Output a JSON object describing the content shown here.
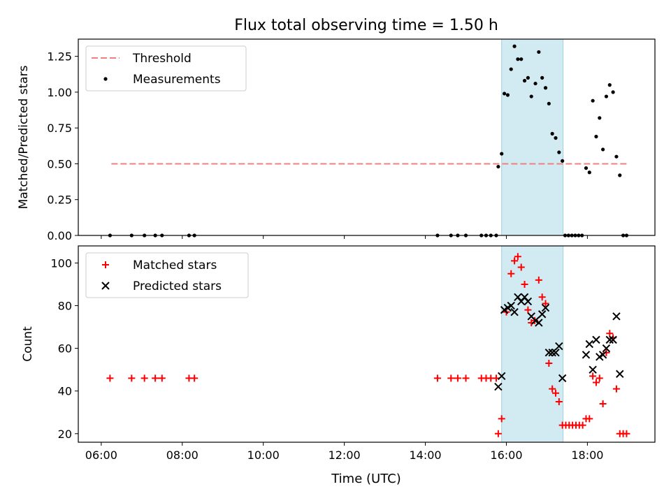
{
  "figure": {
    "title": "Flux total observing time = 1.50 h",
    "xlabel": "Time (UTC)",
    "x_ticks": [
      "06:00",
      "08:00",
      "10:00",
      "12:00",
      "14:00",
      "16:00",
      "18:00"
    ],
    "shaded_interval": {
      "start": "15:53",
      "end": "17:24",
      "color": "#add8e6"
    }
  },
  "chart_data": [
    {
      "type": "scatter",
      "panel": "top",
      "ylabel": "Matched/Predicted stars",
      "ylim": [
        0,
        1.37
      ],
      "y_ticks": [
        "0.00",
        "0.25",
        "0.50",
        "0.75",
        "1.00",
        "1.25"
      ],
      "legend": {
        "placement": "upper-left",
        "entries": [
          "Threshold",
          "Measurements"
        ]
      },
      "series": [
        {
          "name": "Threshold",
          "style": "dashed-line",
          "color": "#f08080",
          "points": [
            [
              "06:15",
              0.5
            ],
            [
              "19:00",
              0.5
            ]
          ]
        },
        {
          "name": "Measurements",
          "style": "dot",
          "color": "#000000",
          "points": [
            [
              "06:13",
              0
            ],
            [
              "06:45",
              0
            ],
            [
              "07:04",
              0
            ],
            [
              "07:20",
              0
            ],
            [
              "07:30",
              0
            ],
            [
              "08:10",
              0
            ],
            [
              "08:18",
              0
            ],
            [
              "14:18",
              0
            ],
            [
              "14:38",
              0
            ],
            [
              "14:48",
              0
            ],
            [
              "15:00",
              0
            ],
            [
              "15:23",
              0
            ],
            [
              "15:30",
              0
            ],
            [
              "15:37",
              0
            ],
            [
              "15:45",
              0
            ],
            [
              "15:48",
              0.48
            ],
            [
              "15:53",
              0.57
            ],
            [
              "15:57",
              0.99
            ],
            [
              "16:02",
              0.98
            ],
            [
              "16:07",
              1.16
            ],
            [
              "16:12",
              1.32
            ],
            [
              "16:17",
              1.23
            ],
            [
              "16:22",
              1.23
            ],
            [
              "16:27",
              1.08
            ],
            [
              "16:32",
              1.1
            ],
            [
              "16:37",
              0.97
            ],
            [
              "16:43",
              1.06
            ],
            [
              "16:48",
              1.28
            ],
            [
              "16:53",
              1.1
            ],
            [
              "16:58",
              1.03
            ],
            [
              "17:03",
              0.92
            ],
            [
              "17:08",
              0.71
            ],
            [
              "17:13",
              0.68
            ],
            [
              "17:18",
              0.58
            ],
            [
              "17:23",
              0.52
            ],
            [
              "17:27",
              0
            ],
            [
              "17:32",
              0
            ],
            [
              "17:37",
              0
            ],
            [
              "17:42",
              0
            ],
            [
              "17:47",
              0
            ],
            [
              "17:52",
              0
            ],
            [
              "17:58",
              0.47
            ],
            [
              "18:03",
              0.44
            ],
            [
              "18:08",
              0.94
            ],
            [
              "18:13",
              0.69
            ],
            [
              "18:18",
              0.82
            ],
            [
              "18:23",
              0.6
            ],
            [
              "18:28",
              0.97
            ],
            [
              "18:33",
              1.05
            ],
            [
              "18:38",
              1.0
            ],
            [
              "18:43",
              0.55
            ],
            [
              "18:48",
              0.42
            ],
            [
              "18:53",
              0
            ],
            [
              "18:58",
              0
            ]
          ]
        }
      ]
    },
    {
      "type": "scatter",
      "panel": "bottom",
      "ylabel": "Count",
      "ylim": [
        16,
        108
      ],
      "y_ticks": [
        "20",
        "40",
        "60",
        "80",
        "100"
      ],
      "legend": {
        "placement": "upper-left",
        "entries": [
          "Matched stars",
          "Predicted stars"
        ]
      },
      "series": [
        {
          "name": "Matched stars",
          "marker": "plus",
          "color": "#ff0000",
          "points": [
            [
              "06:13",
              46
            ],
            [
              "06:45",
              46
            ],
            [
              "07:04",
              46
            ],
            [
              "07:20",
              46
            ],
            [
              "07:30",
              46
            ],
            [
              "08:10",
              46
            ],
            [
              "08:18",
              46
            ],
            [
              "14:18",
              46
            ],
            [
              "14:38",
              46
            ],
            [
              "14:48",
              46
            ],
            [
              "15:00",
              46
            ],
            [
              "15:23",
              46
            ],
            [
              "15:30",
              46
            ],
            [
              "15:37",
              46
            ],
            [
              "15:45",
              46
            ],
            [
              "15:48",
              20
            ],
            [
              "15:53",
              27
            ],
            [
              "16:00",
              77
            ],
            [
              "16:07",
              95
            ],
            [
              "16:12",
              101
            ],
            [
              "16:17",
              103
            ],
            [
              "16:22",
              98
            ],
            [
              "16:27",
              90
            ],
            [
              "16:32",
              78
            ],
            [
              "16:37",
              72
            ],
            [
              "16:42",
              73
            ],
            [
              "16:48",
              92
            ],
            [
              "16:53",
              84
            ],
            [
              "16:58",
              81
            ],
            [
              "17:03",
              53
            ],
            [
              "17:08",
              41
            ],
            [
              "17:13",
              39
            ],
            [
              "17:18",
              35
            ],
            [
              "17:23",
              24
            ],
            [
              "17:28",
              24
            ],
            [
              "17:33",
              24
            ],
            [
              "17:38",
              24
            ],
            [
              "17:43",
              24
            ],
            [
              "17:48",
              24
            ],
            [
              "17:53",
              24
            ],
            [
              "17:58",
              27
            ],
            [
              "18:03",
              27
            ],
            [
              "18:08",
              47
            ],
            [
              "18:13",
              44
            ],
            [
              "18:18",
              46
            ],
            [
              "18:23",
              34
            ],
            [
              "18:28",
              58
            ],
            [
              "18:33",
              67
            ],
            [
              "18:38",
              65
            ],
            [
              "18:43",
              41
            ],
            [
              "18:48",
              20
            ],
            [
              "18:53",
              20
            ],
            [
              "18:58",
              20
            ]
          ]
        },
        {
          "name": "Predicted stars",
          "marker": "x",
          "color": "#000000",
          "points": [
            [
              "15:48",
              42
            ],
            [
              "15:53",
              47
            ],
            [
              "15:57",
              78
            ],
            [
              "16:02",
              79
            ],
            [
              "16:07",
              80
            ],
            [
              "16:12",
              77
            ],
            [
              "16:17",
              84
            ],
            [
              "16:22",
              82
            ],
            [
              "16:27",
              84
            ],
            [
              "16:32",
              82
            ],
            [
              "16:37",
              75
            ],
            [
              "16:43",
              73
            ],
            [
              "16:48",
              72
            ],
            [
              "16:53",
              76
            ],
            [
              "16:58",
              79
            ],
            [
              "17:03",
              58
            ],
            [
              "17:08",
              58
            ],
            [
              "17:13",
              58
            ],
            [
              "17:18",
              61
            ],
            [
              "17:23",
              46
            ],
            [
              "17:58",
              57
            ],
            [
              "18:03",
              62
            ],
            [
              "18:08",
              50
            ],
            [
              "18:13",
              64
            ],
            [
              "18:18",
              56
            ],
            [
              "18:23",
              57
            ],
            [
              "18:28",
              60
            ],
            [
              "18:33",
              64
            ],
            [
              "18:38",
              64
            ],
            [
              "18:43",
              75
            ],
            [
              "18:48",
              48
            ]
          ]
        }
      ]
    }
  ]
}
